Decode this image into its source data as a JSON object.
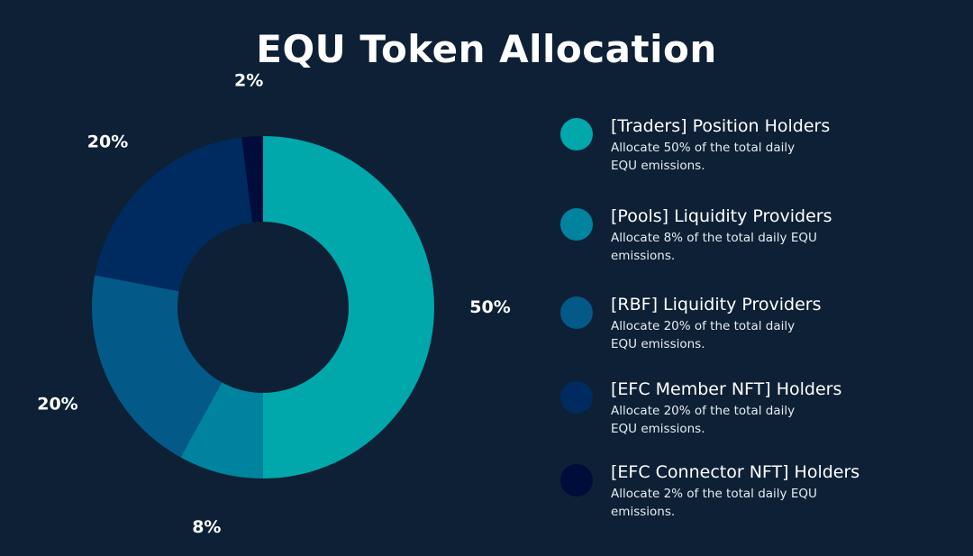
{
  "colors": {
    "background": "#0e2035",
    "text": "#ffffff"
  },
  "chart_data": {
    "type": "pie",
    "title": "EQU Token Allocation",
    "donut": true,
    "categories": [
      "[Traders] Position Holders",
      "[Pools] Liquidity Providers",
      "[RBF] Liquidity Providers",
      "[EFC Member NFT] Holders",
      "[EFC Connector NFT] Holders"
    ],
    "values": [
      50,
      8,
      20,
      20,
      2
    ],
    "labels": [
      "50%",
      "8%",
      "20%",
      "20%",
      "2%"
    ],
    "colors": [
      "#00a8ac",
      "#00839e",
      "#035988",
      "#002b60",
      "#000c3a"
    ],
    "legend_position": "right"
  },
  "legend": [
    {
      "name": "[Traders] Position Holders",
      "desc": "Allocate 50% of the total daily EQU emissions.",
      "color": "#00a8ac"
    },
    {
      "name": "[Pools] Liquidity Providers",
      "desc": "Allocate 8% of the total daily EQU emissions.",
      "color": "#00839e"
    },
    {
      "name": "[RBF] Liquidity Providers",
      "desc": "Allocate 20% of the total daily EQU emissions.",
      "color": "#035988"
    },
    {
      "name": "[EFC Member NFT] Holders",
      "desc": "Allocate 20% of the total daily EQU emissions.",
      "color": "#002b60"
    },
    {
      "name": "[EFC Connector NFT] Holders",
      "desc": "Allocate 2% of the total daily EQU emissions.",
      "color": "#000c3a"
    }
  ]
}
